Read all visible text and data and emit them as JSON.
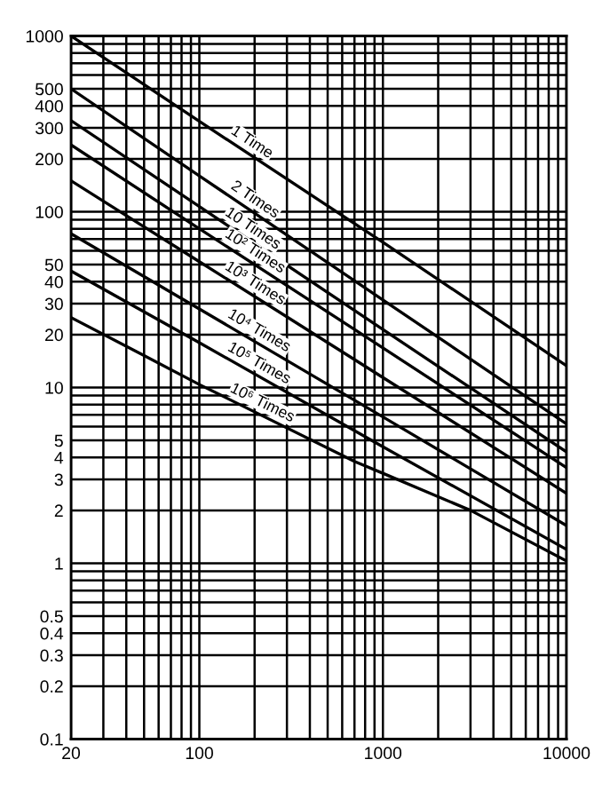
{
  "chart_data": {
    "type": "line",
    "log": "xy",
    "grid": true,
    "legend": false,
    "marker": "none",
    "line_style": "solid",
    "xlim": [
      20,
      10000
    ],
    "ylim": [
      0.1,
      1000
    ],
    "xticks": [
      20,
      {
        "value": 30,
        "label": null
      },
      {
        "value": 40,
        "label": null
      },
      {
        "value": 50,
        "label": null
      },
      {
        "value": 60,
        "label": null
      },
      {
        "value": 70,
        "label": null
      },
      {
        "value": 80,
        "label": null
      },
      {
        "value": 90,
        "label": null
      },
      100,
      {
        "value": 200,
        "label": null
      },
      {
        "value": 300,
        "label": null
      },
      {
        "value": 400,
        "label": null
      },
      {
        "value": 500,
        "label": null
      },
      {
        "value": 600,
        "label": null
      },
      {
        "value": 700,
        "label": null
      },
      {
        "value": 800,
        "label": null
      },
      {
        "value": 900,
        "label": null
      },
      1000,
      {
        "value": 2000,
        "label": null
      },
      {
        "value": 3000,
        "label": null
      },
      {
        "value": 4000,
        "label": null
      },
      {
        "value": 5000,
        "label": null
      },
      {
        "value": 6000,
        "label": null
      },
      {
        "value": 7000,
        "label": null
      },
      {
        "value": 8000,
        "label": null
      },
      {
        "value": 9000,
        "label": null
      },
      10000
    ],
    "yticks": [
      {
        "value": 0.1,
        "label": "0.1"
      },
      {
        "value": 0.2,
        "label": "0.2"
      },
      {
        "value": 0.3,
        "label": "0.3"
      },
      {
        "value": 0.4,
        "label": "0.4"
      },
      {
        "value": 0.5,
        "label": "0.5"
      },
      {
        "value": 0.6,
        "label": null
      },
      {
        "value": 0.7,
        "label": null
      },
      {
        "value": 0.8,
        "label": null
      },
      {
        "value": 0.9,
        "label": null
      },
      1,
      2,
      3,
      4,
      5,
      {
        "value": 6,
        "label": null
      },
      {
        "value": 7,
        "label": null
      },
      {
        "value": 8,
        "label": null
      },
      {
        "value": 9,
        "label": null
      },
      10,
      20,
      30,
      40,
      50,
      {
        "value": 60,
        "label": null
      },
      {
        "value": 70,
        "label": null
      },
      {
        "value": 80,
        "label": null
      },
      {
        "value": 90,
        "label": null
      },
      100,
      200,
      300,
      400,
      500,
      {
        "value": 600,
        "label": null
      },
      {
        "value": 700,
        "label": null
      },
      {
        "value": 800,
        "label": null
      },
      {
        "value": 900,
        "label": null
      },
      1000
    ],
    "series": [
      {
        "name": "1 Time",
        "color": "#000000",
        "x": [
          20,
          100,
          1000,
          10000
        ],
        "values": [
          1000,
          327,
          67,
          13.3
        ]
      },
      {
        "name": "2 Times",
        "color": "#000000",
        "x": [
          20,
          100,
          1000,
          10000
        ],
        "values": [
          500,
          160,
          31.5,
          6.2
        ]
      },
      {
        "name": "10 Times",
        "color": "#000000",
        "x": [
          20,
          100,
          1000,
          10000
        ],
        "values": [
          330,
          107,
          21.4,
          4.3
        ]
      },
      {
        "name": "10² Times",
        "color": "#000000",
        "x": [
          20,
          100,
          1000,
          10000
        ],
        "values": [
          240,
          80,
          16.8,
          3.5
        ]
      },
      {
        "name": "10³ Times",
        "color": "#000000",
        "x": [
          20,
          100,
          1000,
          10000
        ],
        "values": [
          150,
          52,
          11.4,
          2.5
        ]
      },
      {
        "name": "10⁴ Times",
        "color": "#000000",
        "x": [
          20,
          100,
          1000,
          10000
        ],
        "values": [
          75,
          28,
          6.8,
          1.64
        ]
      },
      {
        "name": "10⁵ Times",
        "color": "#000000",
        "x": [
          20,
          100,
          1000,
          10000
        ],
        "values": [
          46,
          18,
          4.6,
          1.2
        ]
      },
      {
        "name": "10⁶ Times",
        "color": "#000000",
        "x": [
          20,
          50,
          100,
          700,
          1000,
          3000,
          10000
        ],
        "values": [
          25,
          15.2,
          10.4,
          3.8,
          3.25,
          2.0,
          1.03
        ]
      }
    ]
  }
}
